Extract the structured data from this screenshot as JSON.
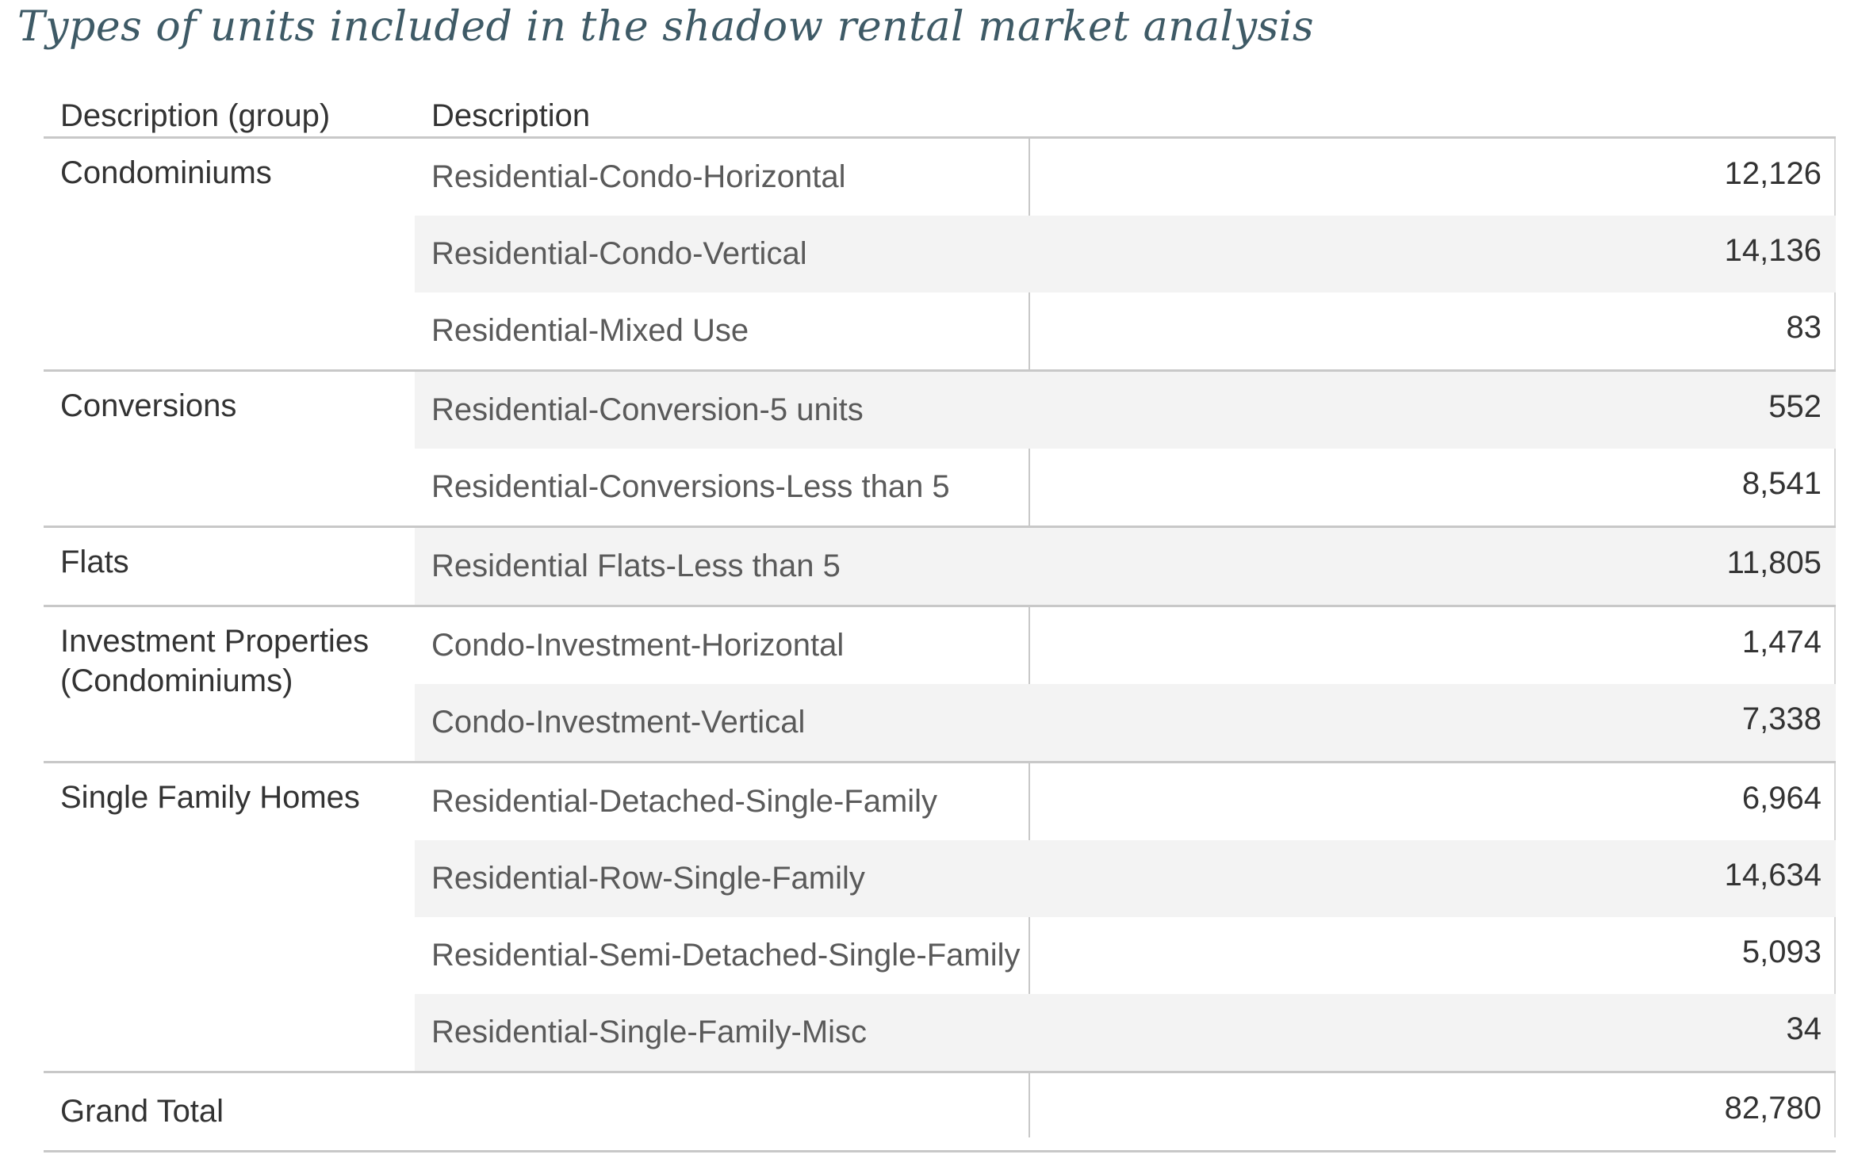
{
  "title": "Types of units included in the shadow rental market analysis",
  "columns": {
    "group": "Description (group)",
    "description": "Description"
  },
  "groups": [
    {
      "label": "Condominiums",
      "rows": [
        {
          "description": "Residential-Condo-Horizontal",
          "value": "12,126"
        },
        {
          "description": "Residential-Condo-Vertical",
          "value": "14,136"
        },
        {
          "description": "Residential-Mixed Use",
          "value": "83"
        }
      ]
    },
    {
      "label": "Conversions",
      "rows": [
        {
          "description": "Residential-Conversion-5 units",
          "value": "552"
        },
        {
          "description": "Residential-Conversions-Less than 5",
          "value": "8,541"
        }
      ]
    },
    {
      "label": "Flats",
      "rows": [
        {
          "description": "Residential Flats-Less than 5",
          "value": "11,805"
        }
      ]
    },
    {
      "label": "Investment Properties (Condominiums)",
      "rows": [
        {
          "description": "Condo-Investment-Horizontal",
          "value": "1,474"
        },
        {
          "description": "Condo-Investment-Vertical",
          "value": "7,338"
        }
      ]
    },
    {
      "label": "Single Family Homes",
      "rows": [
        {
          "description": "Residential-Detached-Single-Family",
          "value": "6,964"
        },
        {
          "description": "Residential-Row-Single-Family",
          "value": "14,634"
        },
        {
          "description": "Residential-Semi-Detached-Single-Family",
          "value": "5,093"
        },
        {
          "description": "Residential-Single-Family-Misc",
          "value": "34"
        }
      ]
    }
  ],
  "grand_total": {
    "label": "Grand Total",
    "value": "82,780"
  },
  "colors": {
    "title": "#3e5a66",
    "row_shade": "#f3f3f3",
    "rule": "#c8c8c8"
  }
}
